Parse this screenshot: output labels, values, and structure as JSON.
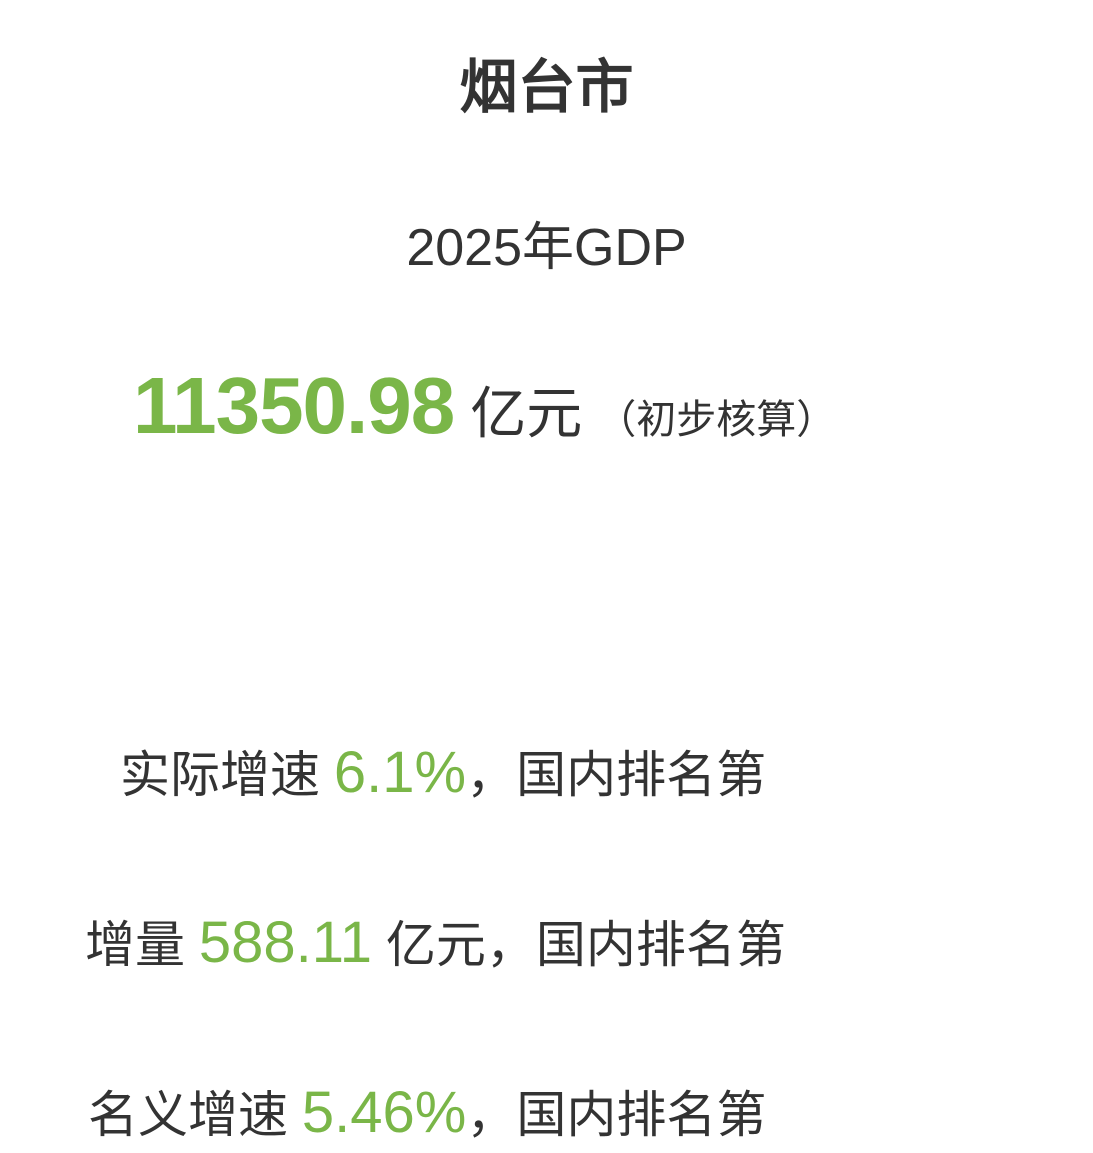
{
  "title": "烟台市",
  "subtitle": "2025年GDP",
  "gdp": {
    "value": "11350.98",
    "unit": "亿元",
    "note": "（初步核算）"
  },
  "accent_color": "#7ab648",
  "stats": [
    {
      "label": "实际增速 ",
      "value": "6.1%",
      "suffix": "，国内排名第"
    },
    {
      "label": "增量 ",
      "value": "588.11",
      "suffix": " 亿元，国内排名第"
    },
    {
      "label": "名义增速 ",
      "value": "5.46%",
      "suffix": "，国内排名第"
    }
  ]
}
